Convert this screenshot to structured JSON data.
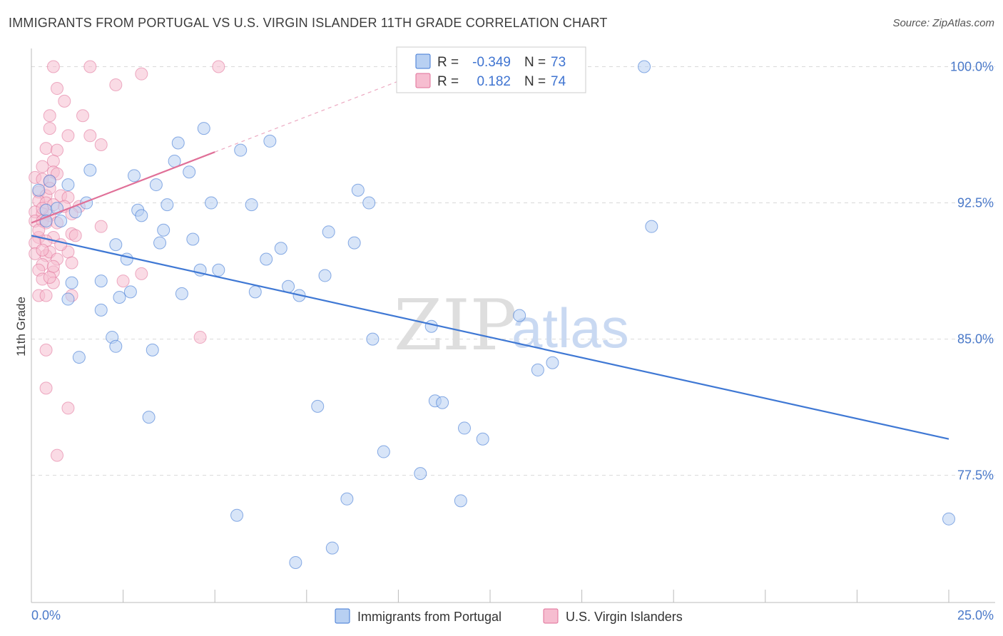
{
  "title": "IMMIGRANTS FROM PORTUGAL VS U.S. VIRGIN ISLANDER 11TH GRADE CORRELATION CHART",
  "source": "Source: ZipAtlas.com",
  "watermark": {
    "zip": "ZIP",
    "atlas": "atlas"
  },
  "colors": {
    "blue": "#3f78d4",
    "blue_fill": "#b8d0f2",
    "pink": "#e07098",
    "pink_fill": "#f6bdd0",
    "grid": "#d9d9d9",
    "label": "#4a79c9"
  },
  "chart_data": {
    "type": "scatter",
    "xlabel": "",
    "ylabel": "11th Grade",
    "xlim": [
      0,
      25
    ],
    "ylim": [
      70.5,
      101
    ],
    "x_tick_labels": [
      "0.0%",
      "25.0%"
    ],
    "y_ticks": [
      77.5,
      85.0,
      92.5,
      100.0
    ],
    "y_tick_labels": [
      "77.5%",
      "85.0%",
      "92.5%",
      "100.0%"
    ],
    "grid": "horizontal dashed",
    "legend_position": "top-center",
    "stats": [
      {
        "r_label": "R =",
        "r": "-0.349",
        "n_label": "N =",
        "n": "73"
      },
      {
        "r_label": "R =",
        "r": "0.182",
        "n_label": "N =",
        "n": "74"
      }
    ],
    "series": [
      {
        "name": "Immigrants from Portugal",
        "color": "#3f78d4",
        "trend": {
          "x0": 0,
          "y0": 90.7,
          "x1": 25,
          "y1": 79.5
        },
        "points": [
          [
            0.2,
            93.2
          ],
          [
            0.5,
            93.7
          ],
          [
            0.4,
            92.1
          ],
          [
            0.8,
            91.5
          ],
          [
            0.7,
            92.2
          ],
          [
            1.0,
            93.5
          ],
          [
            1.2,
            92.0
          ],
          [
            1.5,
            92.5
          ],
          [
            1.1,
            88.1
          ],
          [
            1.0,
            87.2
          ],
          [
            1.3,
            84.0
          ],
          [
            1.9,
            88.2
          ],
          [
            1.6,
            94.3
          ],
          [
            2.3,
            90.2
          ],
          [
            1.9,
            86.6
          ],
          [
            2.2,
            85.1
          ],
          [
            2.3,
            84.6
          ],
          [
            2.4,
            87.3
          ],
          [
            2.6,
            89.4
          ],
          [
            2.7,
            87.6
          ],
          [
            2.8,
            94.0
          ],
          [
            2.9,
            92.1
          ],
          [
            3.0,
            91.8
          ],
          [
            3.2,
            80.7
          ],
          [
            3.3,
            84.4
          ],
          [
            3.4,
            93.5
          ],
          [
            3.5,
            90.3
          ],
          [
            3.6,
            91.0
          ],
          [
            3.7,
            92.4
          ],
          [
            3.9,
            94.8
          ],
          [
            4.0,
            95.8
          ],
          [
            4.1,
            87.5
          ],
          [
            4.3,
            94.2
          ],
          [
            4.4,
            90.5
          ],
          [
            4.6,
            88.8
          ],
          [
            4.7,
            96.6
          ],
          [
            4.9,
            92.5
          ],
          [
            5.1,
            88.8
          ],
          [
            5.6,
            75.3
          ],
          [
            5.7,
            95.4
          ],
          [
            6.0,
            92.4
          ],
          [
            6.1,
            87.6
          ],
          [
            6.4,
            89.4
          ],
          [
            6.5,
            95.9
          ],
          [
            6.8,
            90.0
          ],
          [
            7.0,
            87.9
          ],
          [
            7.2,
            72.7
          ],
          [
            7.3,
            87.4
          ],
          [
            7.8,
            81.3
          ],
          [
            8.0,
            88.5
          ],
          [
            8.1,
            90.9
          ],
          [
            8.2,
            73.5
          ],
          [
            8.6,
            76.2
          ],
          [
            8.8,
            90.3
          ],
          [
            8.9,
            93.2
          ],
          [
            9.2,
            92.5
          ],
          [
            9.3,
            85.0
          ],
          [
            9.6,
            78.8
          ],
          [
            10.6,
            77.6
          ],
          [
            10.9,
            85.7
          ],
          [
            11.0,
            81.6
          ],
          [
            11.2,
            81.5
          ],
          [
            11.7,
            76.1
          ],
          [
            11.8,
            80.1
          ],
          [
            12.3,
            79.5
          ],
          [
            13.3,
            86.3
          ],
          [
            13.8,
            83.3
          ],
          [
            14.2,
            83.7
          ],
          [
            14.0,
            100.0
          ],
          [
            16.7,
            100.0
          ],
          [
            16.9,
            91.2
          ],
          [
            25.0,
            75.1
          ],
          [
            0.4,
            91.5
          ]
        ]
      },
      {
        "name": "U.S. Virgin Islanders",
        "color": "#e07098",
        "trend": {
          "x0": 0,
          "y0": 91.4,
          "x1": 5,
          "y1": 95.3,
          "dash_to_x": 10.2
        },
        "points": [
          [
            0.6,
            100.0
          ],
          [
            1.6,
            100.0
          ],
          [
            5.1,
            100.0
          ],
          [
            0.7,
            98.8
          ],
          [
            3.0,
            99.6
          ],
          [
            2.3,
            99.0
          ],
          [
            0.9,
            98.1
          ],
          [
            0.5,
            97.3
          ],
          [
            1.4,
            97.3
          ],
          [
            0.5,
            96.6
          ],
          [
            1.0,
            96.2
          ],
          [
            1.6,
            96.2
          ],
          [
            1.9,
            95.7
          ],
          [
            0.4,
            95.5
          ],
          [
            0.7,
            95.4
          ],
          [
            0.6,
            94.8
          ],
          [
            0.3,
            94.5
          ],
          [
            0.6,
            94.2
          ],
          [
            0.7,
            94.1
          ],
          [
            0.1,
            93.9
          ],
          [
            0.3,
            93.8
          ],
          [
            0.5,
            93.7
          ],
          [
            0.2,
            93.1
          ],
          [
            0.4,
            92.9
          ],
          [
            0.8,
            92.9
          ],
          [
            1.0,
            92.8
          ],
          [
            0.2,
            92.6
          ],
          [
            0.4,
            92.5
          ],
          [
            0.6,
            92.4
          ],
          [
            0.9,
            92.3
          ],
          [
            1.3,
            92.3
          ],
          [
            0.1,
            92.0
          ],
          [
            0.3,
            91.9
          ],
          [
            0.5,
            91.8
          ],
          [
            0.1,
            91.5
          ],
          [
            0.3,
            91.5
          ],
          [
            0.4,
            91.4
          ],
          [
            0.7,
            91.4
          ],
          [
            1.9,
            91.2
          ],
          [
            0.2,
            90.6
          ],
          [
            0.6,
            90.6
          ],
          [
            1.1,
            90.8
          ],
          [
            1.2,
            90.7
          ],
          [
            0.1,
            90.3
          ],
          [
            0.4,
            90.4
          ],
          [
            0.1,
            89.7
          ],
          [
            0.4,
            89.6
          ],
          [
            0.5,
            89.8
          ],
          [
            1.0,
            89.8
          ],
          [
            0.7,
            89.4
          ],
          [
            0.3,
            89.1
          ],
          [
            0.2,
            88.8
          ],
          [
            1.1,
            89.2
          ],
          [
            0.6,
            88.7
          ],
          [
            3.0,
            88.6
          ],
          [
            0.3,
            88.3
          ],
          [
            0.6,
            88.1
          ],
          [
            0.5,
            88.4
          ],
          [
            2.5,
            88.2
          ],
          [
            0.2,
            87.4
          ],
          [
            0.4,
            87.4
          ],
          [
            1.1,
            87.4
          ],
          [
            4.6,
            85.1
          ],
          [
            0.4,
            84.4
          ],
          [
            0.4,
            82.3
          ],
          [
            1.0,
            81.2
          ],
          [
            0.7,
            78.6
          ],
          [
            0.3,
            89.9
          ],
          [
            0.2,
            91.0
          ],
          [
            0.5,
            93.3
          ],
          [
            1.1,
            91.9
          ],
          [
            0.8,
            90.2
          ],
          [
            0.3,
            92.2
          ],
          [
            0.6,
            89.0
          ]
        ]
      }
    ]
  }
}
